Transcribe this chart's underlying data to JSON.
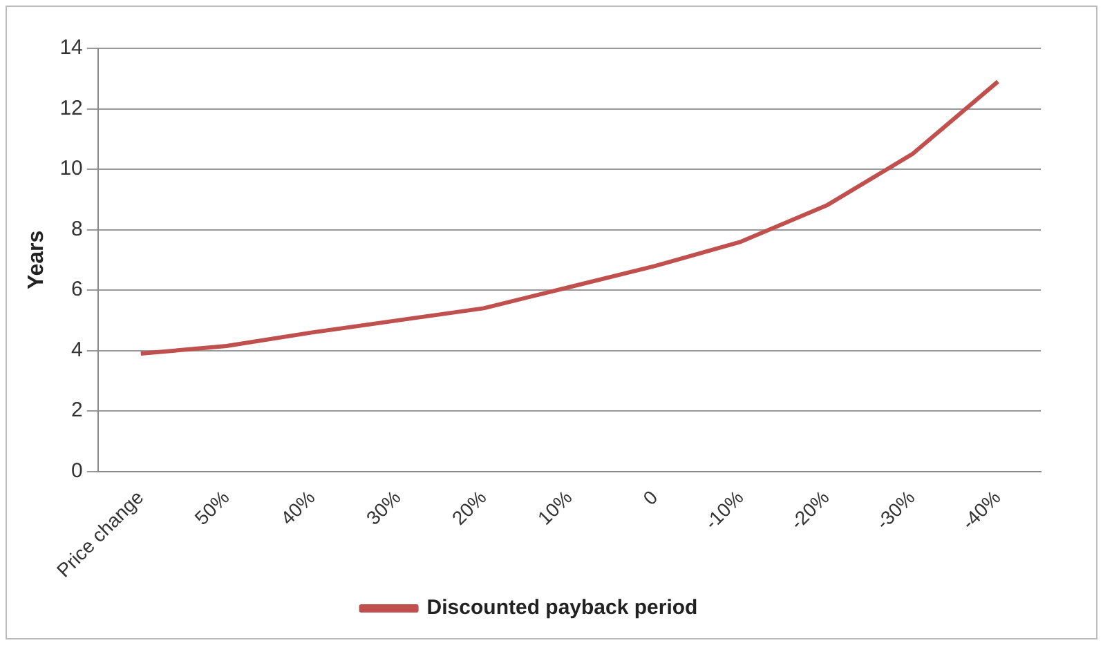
{
  "chart_data": {
    "type": "line",
    "ylabel": "Years",
    "legend": "bottom",
    "grid": "y",
    "marker": "none",
    "line_style": "solid",
    "categories": [
      "Price change",
      "50%",
      "40%",
      "30%",
      "20%",
      "10%",
      "0",
      "-10%",
      "-20%",
      "-30%",
      "-40%"
    ],
    "ylim": [
      0,
      14
    ],
    "yticks": [
      0,
      2,
      4,
      6,
      8,
      10,
      12,
      14
    ],
    "series": [
      {
        "name": "Discounted payback period",
        "color": "#c0504d",
        "values": [
          3.9,
          4.15,
          4.6,
          5.0,
          5.4,
          6.1,
          6.8,
          7.6,
          8.8,
          10.5,
          12.9
        ]
      }
    ]
  }
}
